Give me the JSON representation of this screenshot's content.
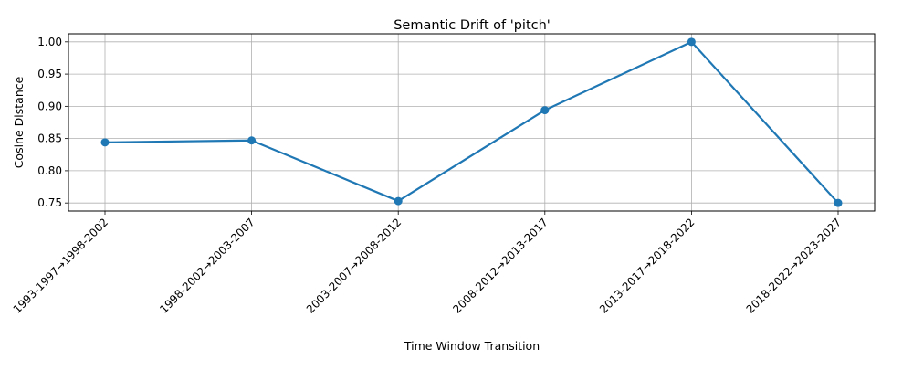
{
  "chart_data": {
    "type": "line",
    "title": "Semantic Drift of 'pitch'",
    "xlabel": "Time Window Transition",
    "ylabel": "Cosine Distance",
    "categories": [
      "1993-1997→1998-2002",
      "1998-2002→2003-2007",
      "2003-2007→2008-2012",
      "2008-2012→2013-2017",
      "2013-2017→2018-2022",
      "2018-2022→2023-2027"
    ],
    "series": [
      {
        "values": [
          0.844,
          0.847,
          0.753,
          0.894,
          1.0,
          0.75
        ],
        "color": "#1f77b4",
        "marker": "circle"
      }
    ],
    "yticks": [
      "0.75",
      "0.80",
      "0.85",
      "0.90",
      "0.95",
      "1.00"
    ],
    "ylim": [
      0.7375,
      1.0125
    ],
    "grid": true,
    "legend": "none"
  }
}
